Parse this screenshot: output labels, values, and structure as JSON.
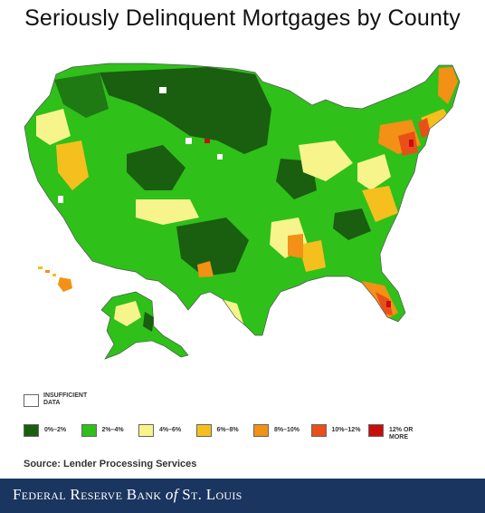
{
  "title": "Seriously Delinquent Mortgages by County",
  "legend": {
    "insufficient_label": "INSUFFICIENT DATA",
    "items": [
      {
        "label": "0%–2%",
        "color": "#1a5e0f"
      },
      {
        "label": "2%–4%",
        "color": "#2fc01a"
      },
      {
        "label": "4%–6%",
        "color": "#f7f48c"
      },
      {
        "label": "6%–8%",
        "color": "#f5bf1e"
      },
      {
        "label": "8%–10%",
        "color": "#f29115"
      },
      {
        "label": "10%–12%",
        "color": "#ea4f1a"
      },
      {
        "label": "12% OR MORE",
        "color": "#c80d0d"
      }
    ]
  },
  "source": "Source: Lender Processing Services",
  "footer": {
    "part1": "Federal Reserve Bank ",
    "of": "of",
    "part2": " St. Louis"
  }
}
